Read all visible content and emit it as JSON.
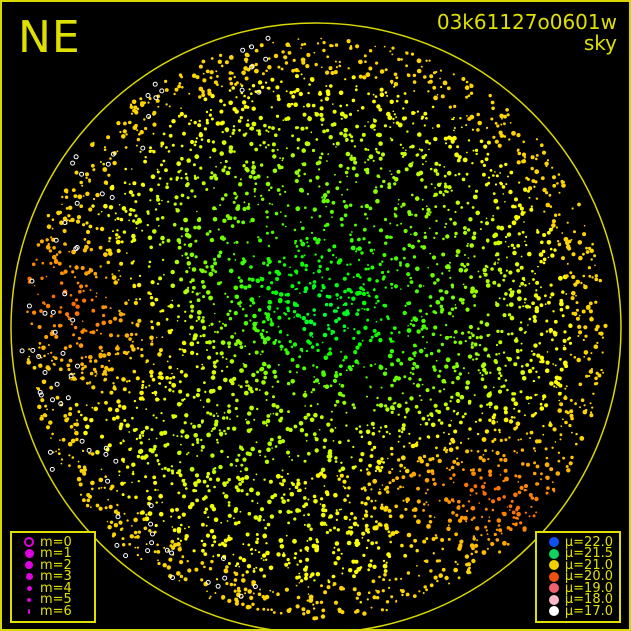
{
  "direction_label": "NE",
  "observation_id": "03k61127o0601w",
  "image_type": "sky",
  "colors": {
    "frame": "#e0e000",
    "background": "#000000"
  },
  "magnitude_legend": [
    {
      "label": "m=0"
    },
    {
      "label": "m=1"
    },
    {
      "label": "m=2"
    },
    {
      "label": "m=3"
    },
    {
      "label": "m=4"
    },
    {
      "label": "m=5"
    },
    {
      "label": "m=6"
    }
  ],
  "magnitude_color": "#e000e0",
  "brightness_legend": [
    {
      "label": "μ=22.0",
      "color": "#1050f0"
    },
    {
      "label": "μ=21.5",
      "color": "#10d060"
    },
    {
      "label": "μ=21.0",
      "color": "#f0d000"
    },
    {
      "label": "μ=20.0",
      "color": "#f05010"
    },
    {
      "label": "μ=19.0",
      "color": "#f06070"
    },
    {
      "label": "μ=18.0",
      "color": "#f8b8c8"
    },
    {
      "label": "μ=17.0",
      "color": "#ffffff"
    }
  ]
}
